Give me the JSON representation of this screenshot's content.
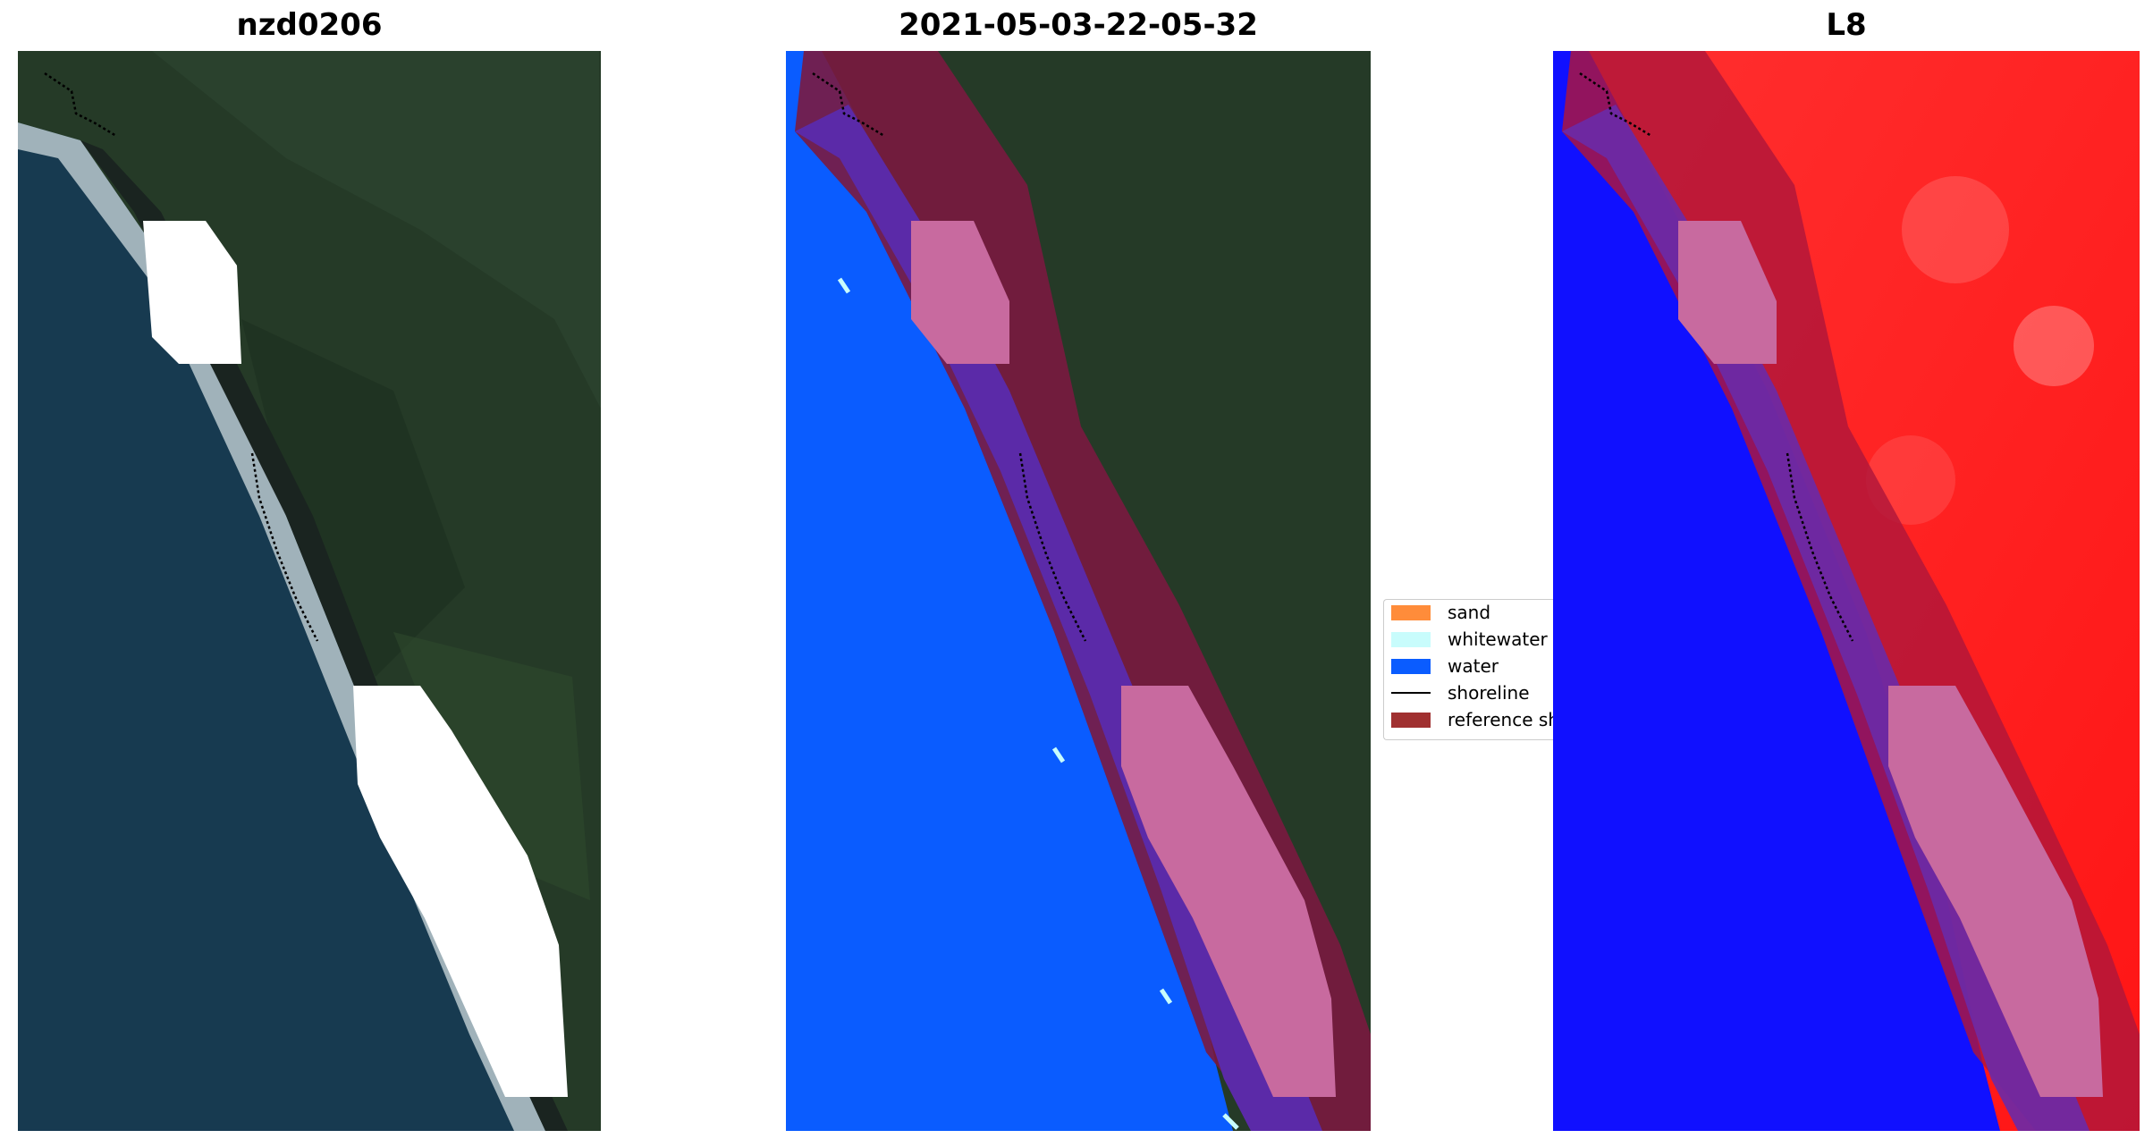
{
  "panels": [
    {
      "title": "nzd0206"
    },
    {
      "title": "2021-05-03-22-05-32"
    },
    {
      "title": "L8"
    }
  ],
  "legend": {
    "items": [
      {
        "label": "sand",
        "color": "#ff8c3a"
      },
      {
        "label": "whitewater",
        "color": "#c8fcfc"
      },
      {
        "label": "water",
        "color": "#0a5cff"
      },
      {
        "label": "shoreline",
        "color": "#000000"
      },
      {
        "label": "reference shoreline buffer",
        "color": "#a03030"
      }
    ]
  },
  "colors": {
    "land": "#253a27",
    "ocean": "#173a50",
    "water_class": "#0a5cff",
    "buffer": "#7a1a40",
    "buffer_mask": "#c86a9f",
    "index_high": "#ff2020",
    "index_low": "#1010ff"
  }
}
